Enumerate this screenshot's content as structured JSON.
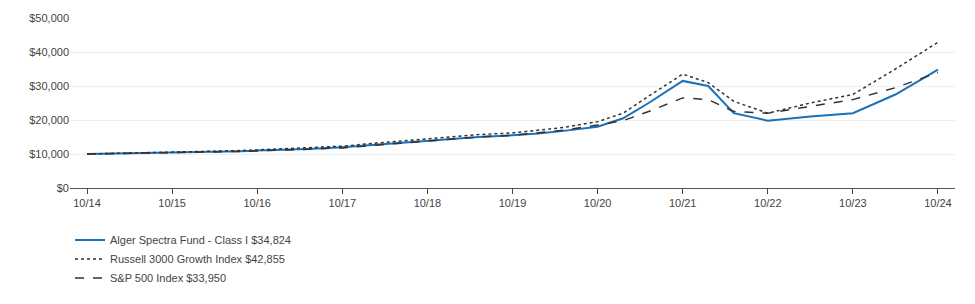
{
  "chart_data": {
    "type": "line",
    "x": [
      0,
      0.3,
      0.6,
      1.0,
      1.4,
      1.8,
      2.0,
      2.3,
      2.6,
      3.0,
      3.4,
      3.8,
      4.0,
      4.3,
      4.6,
      5.0,
      5.3,
      5.6,
      6.0,
      6.3,
      6.6,
      7.0,
      7.3,
      7.6,
      8.0,
      8.5,
      9.0,
      9.5,
      10.0
    ],
    "series": [
      {
        "name": "Alger Spectra Fund - Class I $34,824",
        "color": "#1a72bb",
        "line_style": "solid",
        "values": [
          10000,
          10100,
          10200,
          10400,
          10500,
          10800,
          11000,
          11200,
          11500,
          12000,
          12800,
          13500,
          14000,
          14500,
          15000,
          15500,
          16000,
          16800,
          18000,
          20500,
          25000,
          31500,
          30000,
          22000,
          19800,
          21000,
          22000,
          27500,
          34824
        ]
      },
      {
        "name": "Russell 3000 Growth Index $42,855",
        "color": "#333333",
        "line_style": "dotted",
        "values": [
          10000,
          10150,
          10250,
          10500,
          10700,
          11000,
          11200,
          11500,
          11800,
          12300,
          13200,
          14000,
          14600,
          15200,
          15700,
          16200,
          17000,
          17800,
          19500,
          22000,
          27000,
          33500,
          31000,
          25500,
          22000,
          25000,
          27500,
          35000,
          42855
        ]
      },
      {
        "name": "S&P 500 Index $33,950",
        "color": "#333333",
        "line_style": "dashed",
        "values": [
          10000,
          10100,
          10200,
          10350,
          10500,
          10750,
          10900,
          11100,
          11400,
          11800,
          12600,
          13300,
          13900,
          14500,
          15000,
          15500,
          16200,
          17000,
          18500,
          19800,
          22500,
          26500,
          26000,
          22500,
          22000,
          24000,
          26000,
          29500,
          33950
        ]
      }
    ],
    "xlim": [
      -0.2,
      10.2
    ],
    "xticks": [
      {
        "value": 0,
        "label": "10/14"
      },
      {
        "value": 1,
        "label": "10/15"
      },
      {
        "value": 2,
        "label": "10/16"
      },
      {
        "value": 3,
        "label": "10/17"
      },
      {
        "value": 4,
        "label": "10/18"
      },
      {
        "value": 5,
        "label": "10/19"
      },
      {
        "value": 6,
        "label": "10/20"
      },
      {
        "value": 7,
        "label": "10/21"
      },
      {
        "value": 8,
        "label": "10/22"
      },
      {
        "value": 9,
        "label": "10/23"
      },
      {
        "value": 10,
        "label": "10/24"
      }
    ],
    "ylim": [
      0,
      50000
    ],
    "yticks": [
      {
        "value": 0,
        "label": "$0"
      },
      {
        "value": 10000,
        "label": "$10,000"
      },
      {
        "value": 20000,
        "label": "$20,000"
      },
      {
        "value": 30000,
        "label": "$30,000"
      },
      {
        "value": 40000,
        "label": "$40,000"
      },
      {
        "value": 50000,
        "label": "$50,000"
      }
    ],
    "grid": "y",
    "legend": "lower left"
  }
}
